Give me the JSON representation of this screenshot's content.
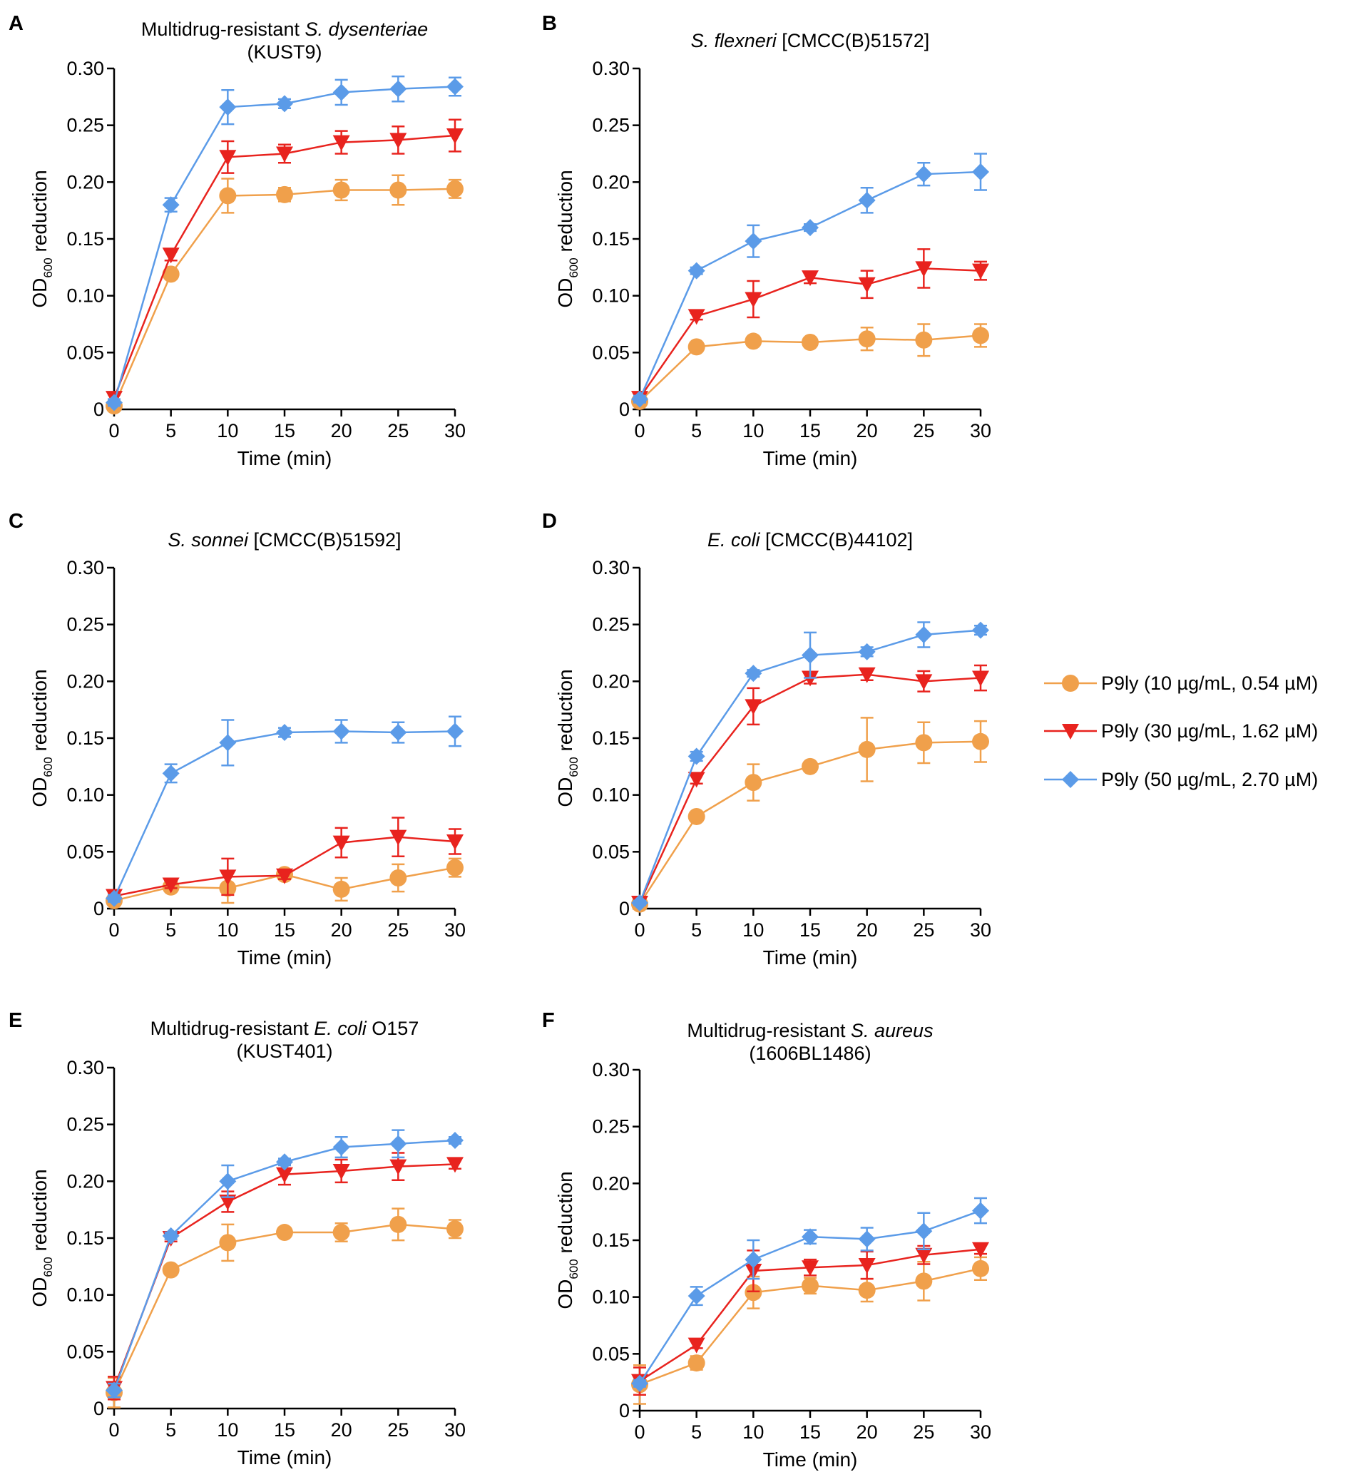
{
  "series_styles": [
    {
      "name": "P9ly (10 µg/mL, 0.54 µM)",
      "color": "#F0A04B",
      "marker": "circle"
    },
    {
      "name": "P9ly (30 µg/mL, 1.62 µM)",
      "color": "#E8231E",
      "marker": "triangle-down"
    },
    {
      "name": "P9ly (50 µg/mL, 2.70 µM)",
      "color": "#5B9BE8",
      "marker": "diamond"
    }
  ],
  "chart_data": [
    {
      "panel": "A",
      "type": "line",
      "title_parts": [
        {
          "text": "Multidrug-resistant ",
          "italic": false
        },
        {
          "text": "S. dysenteriae",
          "italic": true
        }
      ],
      "title_line2": "(KUST9)",
      "xlabel": "Time (min)",
      "ylabel_main": "OD",
      "ylabel_sub": "600",
      "ylabel_rest": " reduction",
      "x": [
        0,
        5,
        10,
        15,
        20,
        25,
        30
      ],
      "xlim": [
        0,
        30
      ],
      "ylim": [
        0,
        0.3
      ],
      "xticks": [
        "0",
        "5",
        "10",
        "15",
        "20",
        "25",
        "30"
      ],
      "yticks": [
        "0",
        "0.05",
        "0.10",
        "0.15",
        "0.20",
        "0.25",
        "0.30"
      ],
      "series": [
        {
          "name": "P9ly (10 µg/mL, 0.54 µM)",
          "values": [
            0.003,
            0.119,
            0.188,
            0.189,
            0.193,
            0.193,
            0.194
          ],
          "errors": [
            0.002,
            0.004,
            0.015,
            0.006,
            0.009,
            0.013,
            0.008
          ]
        },
        {
          "name": "P9ly (30 µg/mL, 1.62 µM)",
          "values": [
            0.01,
            0.136,
            0.222,
            0.225,
            0.235,
            0.237,
            0.241
          ],
          "errors": [
            0.003,
            0.005,
            0.014,
            0.008,
            0.01,
            0.012,
            0.014
          ]
        },
        {
          "name": "P9ly (50 µg/mL, 2.70 µM)",
          "values": [
            0.006,
            0.18,
            0.266,
            0.269,
            0.279,
            0.282,
            0.284
          ],
          "errors": [
            0.003,
            0.006,
            0.015,
            0.004,
            0.011,
            0.011,
            0.008
          ]
        }
      ]
    },
    {
      "panel": "B",
      "type": "line",
      "title_parts": [
        {
          "text": "S. flexneri",
          "italic": true
        },
        {
          "text": " [CMCC(B)51572]",
          "italic": false
        }
      ],
      "title_line2": "",
      "xlabel": "Time (min)",
      "ylabel_main": "OD",
      "ylabel_sub": "600",
      "ylabel_rest": " reduction",
      "x": [
        0,
        5,
        10,
        15,
        20,
        25,
        30
      ],
      "xlim": [
        0,
        30
      ],
      "ylim": [
        0,
        0.3
      ],
      "xticks": [
        "0",
        "5",
        "10",
        "15",
        "20",
        "25",
        "30"
      ],
      "yticks": [
        "0",
        "0.05",
        "0.10",
        "0.15",
        "0.20",
        "0.25",
        "0.30"
      ],
      "series": [
        {
          "name": "P9ly (10 µg/mL, 0.54 µM)",
          "values": [
            0.007,
            0.055,
            0.06,
            0.059,
            0.062,
            0.061,
            0.065
          ],
          "errors": [
            0.003,
            0.003,
            0.003,
            0.003,
            0.01,
            0.014,
            0.01
          ]
        },
        {
          "name": "P9ly (30 µg/mL, 1.62 µM)",
          "values": [
            0.01,
            0.082,
            0.097,
            0.116,
            0.11,
            0.124,
            0.122
          ],
          "errors": [
            0.003,
            0.003,
            0.016,
            0.005,
            0.012,
            0.017,
            0.008
          ]
        },
        {
          "name": "P9ly (50 µg/mL, 2.70 µM)",
          "values": [
            0.009,
            0.122,
            0.148,
            0.16,
            0.184,
            0.207,
            0.209
          ],
          "errors": [
            0.003,
            0.003,
            0.014,
            0.003,
            0.011,
            0.01,
            0.016
          ]
        }
      ]
    },
    {
      "panel": "C",
      "type": "line",
      "title_parts": [
        {
          "text": "S. sonnei",
          "italic": true
        },
        {
          "text": " [CMCC(B)51592]",
          "italic": false
        }
      ],
      "title_line2": "",
      "xlabel": "Time (min)",
      "ylabel_main": "OD",
      "ylabel_sub": "600",
      "ylabel_rest": " reduction",
      "x": [
        0,
        5,
        10,
        15,
        20,
        25,
        30
      ],
      "xlim": [
        0,
        30
      ],
      "ylim": [
        0,
        0.3
      ],
      "xticks": [
        "0",
        "5",
        "10",
        "15",
        "20",
        "25",
        "30"
      ],
      "yticks": [
        "0",
        "0.05",
        "0.10",
        "0.15",
        "0.20",
        "0.25",
        "0.30"
      ],
      "series": [
        {
          "name": "P9ly (10 µg/mL, 0.54 µM)",
          "values": [
            0.007,
            0.019,
            0.018,
            0.03,
            0.017,
            0.027,
            0.036
          ],
          "errors": [
            0.003,
            0.004,
            0.013,
            0.003,
            0.01,
            0.012,
            0.008
          ]
        },
        {
          "name": "P9ly (30 µg/mL, 1.62 µM)",
          "values": [
            0.011,
            0.021,
            0.028,
            0.029,
            0.058,
            0.063,
            0.059
          ],
          "errors": [
            0.003,
            0.003,
            0.016,
            0.003,
            0.013,
            0.017,
            0.011
          ]
        },
        {
          "name": "P9ly (50 µg/mL, 2.70 µM)",
          "values": [
            0.009,
            0.119,
            0.146,
            0.155,
            0.156,
            0.155,
            0.156
          ],
          "errors": [
            0.003,
            0.008,
            0.02,
            0.004,
            0.01,
            0.009,
            0.013
          ]
        }
      ]
    },
    {
      "panel": "D",
      "type": "line",
      "title_parts": [
        {
          "text": "E. coli",
          "italic": true
        },
        {
          "text": "  [CMCC(B)44102]",
          "italic": false
        }
      ],
      "title_line2": "",
      "xlabel": "Time (min)",
      "ylabel_main": "OD",
      "ylabel_sub": "600",
      "ylabel_rest": " reduction",
      "x": [
        0,
        5,
        10,
        15,
        20,
        25,
        30
      ],
      "xlim": [
        0,
        30
      ],
      "ylim": [
        0,
        0.3
      ],
      "xticks": [
        "0",
        "5",
        "10",
        "15",
        "20",
        "25",
        "30"
      ],
      "yticks": [
        "0",
        "0.05",
        "0.10",
        "0.15",
        "0.20",
        "0.25",
        "0.30"
      ],
      "series": [
        {
          "name": "P9ly (10 µg/mL, 0.54 µM)",
          "values": [
            0.004,
            0.081,
            0.111,
            0.125,
            0.14,
            0.146,
            0.147
          ],
          "errors": [
            0.002,
            0.003,
            0.016,
            0.003,
            0.028,
            0.018,
            0.018
          ]
        },
        {
          "name": "P9ly (30 µg/mL, 1.62 µM)",
          "values": [
            0.005,
            0.114,
            0.178,
            0.203,
            0.206,
            0.2,
            0.203
          ],
          "errors": [
            0.002,
            0.004,
            0.016,
            0.005,
            0.005,
            0.009,
            0.011
          ]
        },
        {
          "name": "P9ly (50 µg/mL, 2.70 µM)",
          "values": [
            0.005,
            0.134,
            0.207,
            0.223,
            0.226,
            0.241,
            0.245
          ],
          "errors": [
            0.002,
            0.004,
            0.003,
            0.02,
            0.004,
            0.011,
            0.004
          ]
        }
      ]
    },
    {
      "panel": "E",
      "type": "line",
      "title_parts": [
        {
          "text": "Multidrug-resistant ",
          "italic": false
        },
        {
          "text": "E. coli",
          "italic": true
        },
        {
          "text": " O157",
          "italic": false
        }
      ],
      "title_line2": "(KUST401)",
      "xlabel": "Time (min)",
      "ylabel_main": "OD",
      "ylabel_sub": "600",
      "ylabel_rest": " reduction",
      "x": [
        0,
        5,
        10,
        15,
        20,
        25,
        30
      ],
      "xlim": [
        0,
        30
      ],
      "ylim": [
        0,
        0.3
      ],
      "xticks": [
        "0",
        "5",
        "10",
        "15",
        "20",
        "25",
        "30"
      ],
      "yticks": [
        "0",
        "0.05",
        "0.10",
        "0.15",
        "0.20",
        "0.25",
        "0.30"
      ],
      "series": [
        {
          "name": "P9ly (10 µg/mL, 0.54 µM)",
          "values": [
            0.014,
            0.122,
            0.146,
            0.155,
            0.155,
            0.162,
            0.158
          ],
          "errors": [
            0.013,
            0.003,
            0.016,
            0.003,
            0.008,
            0.014,
            0.008
          ]
        },
        {
          "name": "P9ly (30 µg/mL, 1.62 µM)",
          "values": [
            0.018,
            0.15,
            0.182,
            0.206,
            0.209,
            0.213,
            0.215
          ],
          "errors": [
            0.01,
            0.003,
            0.009,
            0.009,
            0.01,
            0.012,
            0.004
          ]
        },
        {
          "name": "P9ly (50 µg/mL, 2.70 µM)",
          "values": [
            0.016,
            0.152,
            0.2,
            0.217,
            0.23,
            0.233,
            0.236
          ],
          "errors": [
            0.006,
            0.003,
            0.014,
            0.003,
            0.009,
            0.012,
            0.003
          ]
        }
      ]
    },
    {
      "panel": "F",
      "type": "line",
      "title_parts": [
        {
          "text": "Multidrug-resistant ",
          "italic": false
        },
        {
          "text": "S. aureus",
          "italic": true
        }
      ],
      "title_line2": "(1606BL1486)",
      "xlabel": "Time (min)",
      "ylabel_main": "OD",
      "ylabel_sub": "600",
      "ylabel_rest": " reduction",
      "x": [
        0,
        5,
        10,
        15,
        20,
        25,
        30
      ],
      "xlim": [
        0,
        30
      ],
      "ylim": [
        0,
        0.3
      ],
      "xticks": [
        "0",
        "5",
        "10",
        "15",
        "20",
        "25",
        "30"
      ],
      "yticks": [
        "0",
        "0.05",
        "0.10",
        "0.15",
        "0.20",
        "0.25",
        "0.30"
      ],
      "series": [
        {
          "name": "P9ly (10 µg/mL, 0.54 µM)",
          "values": [
            0.023,
            0.042,
            0.104,
            0.11,
            0.106,
            0.114,
            0.125
          ],
          "errors": [
            0.017,
            0.006,
            0.014,
            0.007,
            0.01,
            0.017,
            0.01
          ]
        },
        {
          "name": "P9ly (30 µg/mL, 1.62 µM)",
          "values": [
            0.026,
            0.058,
            0.123,
            0.126,
            0.128,
            0.137,
            0.142
          ],
          "errors": [
            0.012,
            0.003,
            0.018,
            0.007,
            0.012,
            0.008,
            0.004
          ]
        },
        {
          "name": "P9ly (50 µg/mL, 2.70 µM)",
          "values": [
            0.024,
            0.101,
            0.133,
            0.153,
            0.151,
            0.158,
            0.176
          ],
          "errors": [
            0.003,
            0.008,
            0.017,
            0.006,
            0.01,
            0.016,
            0.011
          ]
        }
      ]
    }
  ]
}
